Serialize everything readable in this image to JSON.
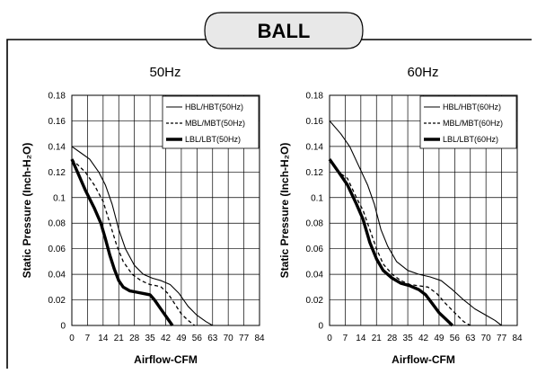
{
  "header": {
    "title": "BALL"
  },
  "chart_data": [
    {
      "type": "line",
      "title": "50Hz",
      "xlabel": "Airflow-CFM",
      "ylabel": "Static Pressure (Inch-H₂O)",
      "xlim": [
        0,
        84
      ],
      "ylim": [
        0,
        0.18
      ],
      "x_ticks": [
        "0",
        "7",
        "14",
        "21",
        "28",
        "35",
        "42",
        "49",
        "56",
        "63",
        "70",
        "77",
        "84"
      ],
      "y_ticks": [
        "0",
        "0.02",
        "0.04",
        "0.06",
        "0.08",
        "0.1",
        "0.12",
        "0.14",
        "0.16",
        "0.18"
      ],
      "grid": true,
      "legend": "top-right",
      "series": [
        {
          "name": "HBL/HBT(50Hz)",
          "style": "thin-solid",
          "points": [
            [
              0,
              0.14
            ],
            [
              4,
              0.135
            ],
            [
              8,
              0.13
            ],
            [
              12,
              0.12
            ],
            [
              15,
              0.11
            ],
            [
              18,
              0.095
            ],
            [
              21,
              0.075
            ],
            [
              24,
              0.06
            ],
            [
              28,
              0.047
            ],
            [
              32,
              0.04
            ],
            [
              36,
              0.037
            ],
            [
              40,
              0.035
            ],
            [
              44,
              0.032
            ],
            [
              48,
              0.025
            ],
            [
              52,
              0.015
            ],
            [
              56,
              0.008
            ],
            [
              60,
              0.003
            ],
            [
              63,
              0
            ]
          ]
        },
        {
          "name": "MBL/MBT(50Hz)",
          "style": "dashed",
          "points": [
            [
              0,
              0.13
            ],
            [
              3,
              0.125
            ],
            [
              6,
              0.12
            ],
            [
              10,
              0.11
            ],
            [
              14,
              0.097
            ],
            [
              17,
              0.08
            ],
            [
              20,
              0.063
            ],
            [
              23,
              0.05
            ],
            [
              27,
              0.04
            ],
            [
              31,
              0.035
            ],
            [
              35,
              0.032
            ],
            [
              38,
              0.031
            ],
            [
              40,
              0.03
            ],
            [
              43,
              0.025
            ],
            [
              46,
              0.017
            ],
            [
              49,
              0.009
            ],
            [
              52,
              0.004
            ],
            [
              55,
              0
            ]
          ]
        },
        {
          "name": "LBL/LBT(50Hz)",
          "style": "thick-solid",
          "points": [
            [
              0,
              0.13
            ],
            [
              3,
              0.118
            ],
            [
              6,
              0.106
            ],
            [
              10,
              0.092
            ],
            [
              13,
              0.08
            ],
            [
              15,
              0.068
            ],
            [
              17,
              0.055
            ],
            [
              19,
              0.044
            ],
            [
              21,
              0.035
            ],
            [
              23,
              0.03
            ],
            [
              26,
              0.027
            ],
            [
              29,
              0.026
            ],
            [
              32,
              0.025
            ],
            [
              35,
              0.024
            ],
            [
              37,
              0.02
            ],
            [
              39,
              0.015
            ],
            [
              41,
              0.01
            ],
            [
              43,
              0.005
            ],
            [
              45,
              0
            ]
          ]
        }
      ]
    },
    {
      "type": "line",
      "title": "60Hz",
      "xlabel": "Airflow-CFM",
      "ylabel": "Static Pressure (Inch-H₂O)",
      "xlim": [
        0,
        84
      ],
      "ylim": [
        0,
        0.18
      ],
      "x_ticks": [
        "0",
        "7",
        "14",
        "21",
        "28",
        "35",
        "42",
        "49",
        "56",
        "63",
        "70",
        "77",
        "84"
      ],
      "y_ticks": [
        "0",
        "0.02",
        "0.04",
        "0.06",
        "0.08",
        "0.1",
        "0.12",
        "0.14",
        "0.16",
        "0.18"
      ],
      "grid": true,
      "legend": "top-right",
      "series": [
        {
          "name": "HBL/HBT(60Hz)",
          "style": "thin-solid",
          "points": [
            [
              0,
              0.16
            ],
            [
              5,
              0.15
            ],
            [
              9,
              0.14
            ],
            [
              13,
              0.125
            ],
            [
              17,
              0.11
            ],
            [
              20,
              0.095
            ],
            [
              23,
              0.075
            ],
            [
              26,
              0.062
            ],
            [
              30,
              0.05
            ],
            [
              35,
              0.043
            ],
            [
              40,
              0.04
            ],
            [
              45,
              0.038
            ],
            [
              50,
              0.035
            ],
            [
              55,
              0.028
            ],
            [
              60,
              0.02
            ],
            [
              65,
              0.013
            ],
            [
              70,
              0.008
            ],
            [
              74,
              0.004
            ],
            [
              77,
              0
            ]
          ]
        },
        {
          "name": "MBL/MBT(60Hz)",
          "style": "dashed",
          "points": [
            [
              0,
              0.13
            ],
            [
              4,
              0.12
            ],
            [
              8,
              0.115
            ],
            [
              12,
              0.1
            ],
            [
              15,
              0.09
            ],
            [
              18,
              0.075
            ],
            [
              21,
              0.06
            ],
            [
              24,
              0.048
            ],
            [
              28,
              0.04
            ],
            [
              32,
              0.035
            ],
            [
              36,
              0.032
            ],
            [
              40,
              0.031
            ],
            [
              44,
              0.03
            ],
            [
              48,
              0.025
            ],
            [
              52,
              0.017
            ],
            [
              56,
              0.01
            ],
            [
              60,
              0.003
            ],
            [
              63,
              0
            ]
          ]
        },
        {
          "name": "LBL/LBT(60Hz)",
          "style": "thick-solid",
          "points": [
            [
              0,
              0.13
            ],
            [
              4,
              0.12
            ],
            [
              8,
              0.11
            ],
            [
              12,
              0.095
            ],
            [
              15,
              0.083
            ],
            [
              18,
              0.065
            ],
            [
              21,
              0.052
            ],
            [
              24,
              0.043
            ],
            [
              28,
              0.037
            ],
            [
              32,
              0.033
            ],
            [
              36,
              0.031
            ],
            [
              40,
              0.028
            ],
            [
              43,
              0.024
            ],
            [
              46,
              0.017
            ],
            [
              49,
              0.01
            ],
            [
              52,
              0.005
            ],
            [
              55,
              0
            ]
          ]
        }
      ]
    }
  ]
}
